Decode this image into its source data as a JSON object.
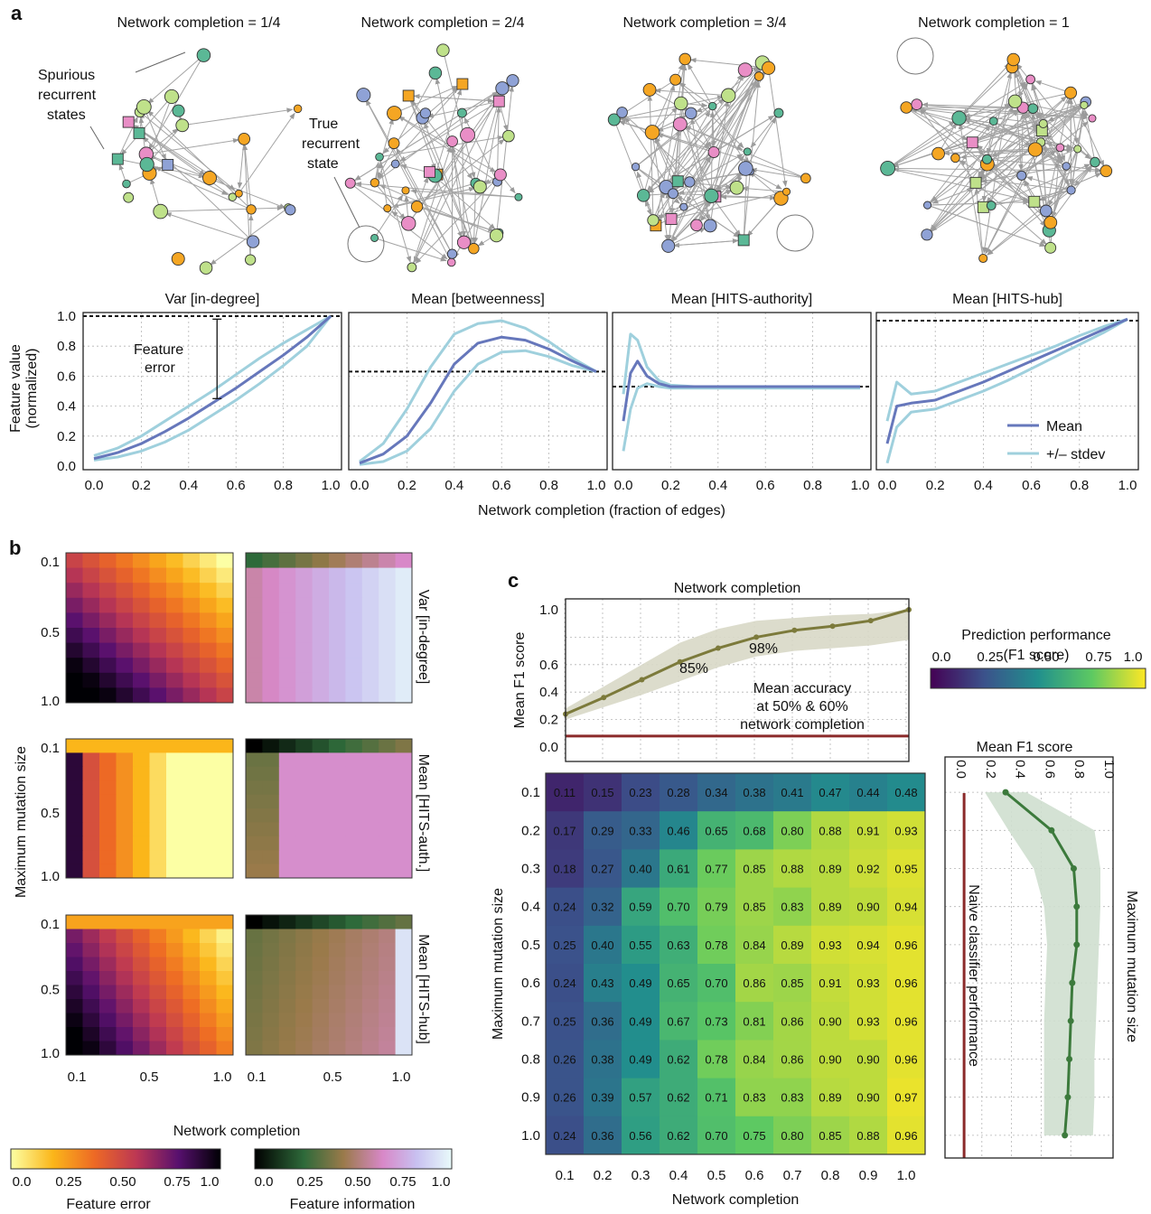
{
  "colors": {
    "orange": "#f5a623",
    "pink": "#e98ec6",
    "lightgreen": "#bfe18a",
    "teal": "#5bb896",
    "blue": "#8fa2d6",
    "mean_line": "#6677bb",
    "stdev_line": "#9fd0dd",
    "naive": "#8b2a2a",
    "f1_line": "#7c7a3b",
    "f1_band": "#d8d8c6",
    "side_line": "#3c7a3c",
    "side_band": "#cfdfcf"
  },
  "panel_a": {
    "label": "a",
    "networks": [
      {
        "title": "Network completion = 1/4"
      },
      {
        "title": "Network completion = 2/4"
      },
      {
        "title": "Network completion = 3/4"
      },
      {
        "title": "Network completion = 1"
      }
    ],
    "annotations": {
      "spurious": [
        "Spurious",
        "recurrent",
        "states"
      ],
      "true_state": [
        "True",
        "recurrent",
        "state"
      ],
      "feature_error": [
        "Feature",
        "error"
      ]
    },
    "ylabel": [
      "Feature value",
      "(normalized)"
    ],
    "xlabel": "Network completion (fraction of edges)",
    "legend": [
      "Mean",
      "+/– stdev"
    ]
  },
  "chart_data": [
    {
      "type": "line",
      "title": "Var [in-degree]",
      "x": [
        0,
        0.1,
        0.2,
        0.3,
        0.4,
        0.5,
        0.6,
        0.7,
        0.8,
        0.9,
        1.0
      ],
      "series": [
        {
          "name": "Mean",
          "values": [
            0.05,
            0.09,
            0.15,
            0.23,
            0.32,
            0.42,
            0.52,
            0.63,
            0.74,
            0.86,
            1.0
          ]
        },
        {
          "name": "+/– stdev",
          "values": [
            0.07,
            0.12,
            0.2,
            0.3,
            0.4,
            0.5,
            0.61,
            0.72,
            0.82,
            0.91,
            1.0
          ]
        },
        {
          "values": [
            0.04,
            0.06,
            0.1,
            0.16,
            0.24,
            0.34,
            0.44,
            0.55,
            0.67,
            0.8,
            1.0
          ]
        }
      ],
      "reference": 1.0,
      "xlim": [
        0,
        1.0
      ],
      "ylim": [
        0,
        1.0
      ],
      "xticks": [
        "0.0",
        "0.2",
        "0.4",
        "0.6",
        "0.8",
        "1.0"
      ],
      "yticks": [
        "0.0",
        "0.2",
        "0.4",
        "0.6",
        "0.8",
        "1.0"
      ]
    },
    {
      "type": "line",
      "title": "Mean [betweenness]",
      "x": [
        0,
        0.1,
        0.2,
        0.3,
        0.4,
        0.5,
        0.6,
        0.7,
        0.8,
        0.9,
        1.0
      ],
      "series": [
        {
          "name": "Mean",
          "values": [
            0.02,
            0.08,
            0.2,
            0.42,
            0.68,
            0.82,
            0.86,
            0.84,
            0.78,
            0.7,
            0.63
          ]
        },
        {
          "name": "+/– stdev",
          "values": [
            0.03,
            0.15,
            0.38,
            0.66,
            0.88,
            0.95,
            0.97,
            0.92,
            0.83,
            0.72,
            0.63
          ]
        },
        {
          "values": [
            0.01,
            0.03,
            0.1,
            0.25,
            0.5,
            0.68,
            0.76,
            0.77,
            0.73,
            0.67,
            0.63
          ]
        }
      ],
      "reference": 0.63,
      "xlim": [
        0,
        1.0
      ],
      "ylim": [
        0,
        1.0
      ],
      "xticks": [
        "0.0",
        "0.2",
        "0.4",
        "0.6",
        "0.8",
        "1.0"
      ]
    },
    {
      "type": "line",
      "title": "Mean [HITS-authority]",
      "x": [
        0,
        0.03,
        0.06,
        0.1,
        0.15,
        0.2,
        0.3,
        0.5,
        0.7,
        1.0
      ],
      "series": [
        {
          "name": "Mean",
          "values": [
            0.3,
            0.62,
            0.7,
            0.6,
            0.55,
            0.53,
            0.53,
            0.53,
            0.53,
            0.53
          ]
        },
        {
          "name": "+/– stdev",
          "values": [
            0.48,
            0.88,
            0.84,
            0.66,
            0.57,
            0.54,
            0.53,
            0.53,
            0.53,
            0.53
          ]
        },
        {
          "values": [
            0.1,
            0.38,
            0.52,
            0.55,
            0.53,
            0.52,
            0.52,
            0.52,
            0.52,
            0.52
          ]
        }
      ],
      "reference": 0.53,
      "xlim": [
        0,
        1.0
      ],
      "ylim": [
        0,
        1.0
      ],
      "xticks": [
        "0.0",
        "0.2",
        "0.4",
        "0.6",
        "0.8",
        "1.0"
      ]
    },
    {
      "type": "line",
      "title": "Mean [HITS-hub]",
      "x": [
        0,
        0.04,
        0.1,
        0.2,
        0.3,
        0.4,
        0.5,
        0.6,
        0.7,
        0.8,
        0.9,
        1.0
      ],
      "series": [
        {
          "name": "Mean",
          "values": [
            0.15,
            0.4,
            0.42,
            0.44,
            0.5,
            0.56,
            0.63,
            0.7,
            0.77,
            0.84,
            0.91,
            0.98
          ]
        },
        {
          "name": "+/– stdev",
          "values": [
            0.3,
            0.56,
            0.48,
            0.5,
            0.56,
            0.62,
            0.68,
            0.74,
            0.8,
            0.87,
            0.93,
            0.98
          ]
        },
        {
          "values": [
            0.02,
            0.26,
            0.36,
            0.38,
            0.44,
            0.5,
            0.57,
            0.65,
            0.73,
            0.81,
            0.89,
            0.98
          ]
        }
      ],
      "reference": 0.97,
      "xlim": [
        0,
        1.0
      ],
      "ylim": [
        0,
        1.0
      ],
      "xticks": [
        "0.0",
        "0.2",
        "0.4",
        "0.6",
        "0.8",
        "1.0"
      ]
    },
    {
      "type": "line",
      "title": "Network completion",
      "x": [
        0.1,
        0.2,
        0.3,
        0.4,
        0.5,
        0.6,
        0.7,
        0.8,
        0.9,
        1.0
      ],
      "series": [
        {
          "values": [
            0.24,
            0.36,
            0.49,
            0.62,
            0.72,
            0.8,
            0.85,
            0.88,
            0.92,
            1.0
          ]
        }
      ],
      "band_upper": [
        0.28,
        0.44,
        0.6,
        0.76,
        0.86,
        0.92,
        0.94,
        0.96,
        0.97,
        1.0
      ],
      "band_lower": [
        0.2,
        0.29,
        0.38,
        0.48,
        0.58,
        0.66,
        0.7,
        0.72,
        0.74,
        0.78
      ],
      "naive_classifier": 0.08,
      "ylabel": "Mean F1 score",
      "ylim": [
        0,
        1.0
      ],
      "yticks": [
        "0.0",
        "0.2",
        "0.4",
        "0.6",
        "1.0"
      ],
      "annotations": [
        "85%",
        "98%",
        "Mean accuracy",
        "at 50% & 60%",
        "network completion"
      ]
    },
    {
      "type": "heatmap",
      "xlabel": "Network completion",
      "ylabel": "Maximum mutation size",
      "x": [
        "0.1",
        "0.2",
        "0.3",
        "0.4",
        "0.5",
        "0.6",
        "0.7",
        "0.8",
        "0.9",
        "1.0"
      ],
      "y": [
        "0.1",
        "0.2",
        "0.3",
        "0.4",
        "0.5",
        "0.6",
        "0.7",
        "0.8",
        "0.9",
        "1.0"
      ],
      "values": [
        [
          "0.11",
          "0.15",
          "0.23",
          "0.28",
          "0.34",
          "0.38",
          "0.41",
          "0.47",
          "0.44",
          "0.48"
        ],
        [
          "0.17",
          "0.29",
          "0.33",
          "0.46",
          "0.65",
          "0.68",
          "0.80",
          "0.88",
          "0.91",
          "0.93"
        ],
        [
          "0.18",
          "0.27",
          "0.40",
          "0.61",
          "0.77",
          "0.85",
          "0.88",
          "0.89",
          "0.92",
          "0.95"
        ],
        [
          "0.24",
          "0.32",
          "0.59",
          "0.70",
          "0.79",
          "0.85",
          "0.83",
          "0.89",
          "0.90",
          "0.94"
        ],
        [
          "0.25",
          "0.40",
          "0.55",
          "0.63",
          "0.78",
          "0.84",
          "0.89",
          "0.93",
          "0.94",
          "0.96"
        ],
        [
          "0.24",
          "0.43",
          "0.49",
          "0.65",
          "0.70",
          "0.86",
          "0.85",
          "0.91",
          "0.93",
          "0.96"
        ],
        [
          "0.25",
          "0.36",
          "0.49",
          "0.67",
          "0.73",
          "0.81",
          "0.86",
          "0.90",
          "0.93",
          "0.96"
        ],
        [
          "0.26",
          "0.38",
          "0.49",
          "0.62",
          "0.78",
          "0.84",
          "0.86",
          "0.90",
          "0.90",
          "0.96"
        ],
        [
          "0.26",
          "0.39",
          "0.57",
          "0.62",
          "0.71",
          "0.83",
          "0.83",
          "0.89",
          "0.90",
          "0.97"
        ],
        [
          "0.24",
          "0.36",
          "0.56",
          "0.62",
          "0.70",
          "0.75",
          "0.80",
          "0.85",
          "0.88",
          "0.96"
        ]
      ]
    },
    {
      "type": "line",
      "title": "Mean F1 score",
      "orientation": "vertical",
      "y": [
        0.1,
        0.2,
        0.3,
        0.4,
        0.5,
        0.6,
        0.7,
        0.8,
        0.9,
        1.0
      ],
      "series": [
        {
          "values": [
            0.36,
            0.67,
            0.82,
            0.84,
            0.84,
            0.81,
            0.8,
            0.79,
            0.78,
            0.76
          ]
        }
      ],
      "band_upper": [
        0.5,
        0.96,
        1.0,
        1.0,
        0.99,
        0.98,
        0.97,
        0.96,
        0.96,
        0.95
      ],
      "band_lower": [
        0.22,
        0.38,
        0.55,
        0.62,
        0.64,
        0.63,
        0.62,
        0.62,
        0.62,
        0.62
      ],
      "naive_classifier": 0.08,
      "naive_label": "Naive classifier performance",
      "side_ylabel": "Maximum mutation size",
      "xticks": [
        "0.0",
        "0.2",
        "0.4",
        "0.6",
        "0.8",
        "1.0"
      ]
    }
  ],
  "panel_b": {
    "label": "b",
    "row_titles": [
      "Var [in-degree]",
      "Mean [HITS-auth.]",
      "Mean [HITS-hub]"
    ],
    "yticks": [
      "0.1",
      "0.5",
      "1.0"
    ],
    "xticks": [
      "0.1",
      "0.5",
      "1.0"
    ],
    "ylabel": "Maximum mutation size",
    "xlabel": "Network completion",
    "colorbar_error": {
      "label": "Feature error",
      "ticks": [
        "0.0",
        "0.25",
        "0.50",
        "0.75",
        "1.0"
      ]
    },
    "colorbar_info": {
      "label": "Feature information",
      "ticks": [
        "0.0",
        "0.25",
        "0.50",
        "0.75",
        "1.0"
      ]
    }
  },
  "panel_c": {
    "label": "c",
    "colorbar": {
      "title": "Prediction performance",
      "subtitle": "(F1 score)",
      "ticks": [
        "0.0",
        "0.25",
        "0.50",
        "0.75",
        "1.0"
      ]
    }
  }
}
